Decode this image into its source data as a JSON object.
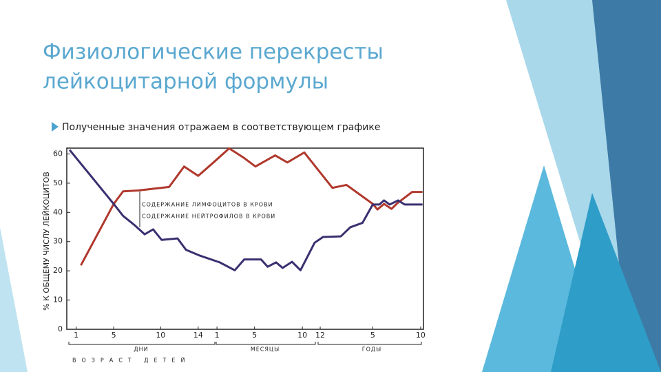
{
  "slide": {
    "title_lines": [
      "Физиологические перекресты",
      "лейкоцитарной формулы"
    ],
    "bullet": "Полученные значения отражаем в соответствующем графике"
  },
  "chart_data": {
    "type": "line",
    "y_label": "% К ОБЩЕМУ ЧИСЛУ ЛЕЙКОЦИТОВ",
    "x_group_labels": [
      "ДНИ",
      "МЕСЯЦЫ",
      "ГОДЫ"
    ],
    "x_label": "ВОЗРАСТ ДЕТЕЙ",
    "xlim": [
      0,
      38
    ],
    "ylim": [
      0,
      62
    ],
    "xticks": [
      {
        "value": 1,
        "label": "1"
      },
      {
        "value": 5,
        "label": "5"
      },
      {
        "value": 10,
        "label": "10"
      },
      {
        "value": 14,
        "label": "14"
      },
      {
        "value": 16,
        "label": "1"
      },
      {
        "value": 20,
        "label": "5"
      },
      {
        "value": 25.1,
        "label": "10"
      },
      {
        "value": 27,
        "label": "12"
      },
      {
        "value": 32.6,
        "label": "5"
      },
      {
        "value": 37.7,
        "label": "10"
      }
    ],
    "yticks": [
      0,
      10,
      20,
      30,
      40,
      50,
      60
    ],
    "series": [
      {
        "name": "СОДЕРЖАНИЕ ЛИМФОЦИТОВ В КРОВИ",
        "color": "#b0382c",
        "x": [
          1.5,
          5,
          6,
          7.6,
          10.9,
          12.5,
          14,
          15.7,
          17.3,
          18.9,
          20.1,
          22.2,
          23.5,
          25.3,
          28.3,
          29.8,
          32.6,
          33.1,
          33.8,
          34.6,
          35.2,
          36.8,
          37.9
        ],
        "values": [
          21.9,
          42.9,
          47.2,
          47.5,
          48.7,
          55.7,
          52.5,
          57.3,
          61.9,
          58.6,
          55.7,
          59.5,
          57.1,
          60.5,
          48.4,
          49.4,
          42.9,
          41,
          42.9,
          41.2,
          43.1,
          47,
          47
        ]
      },
      {
        "name": "СОДЕРЖАНИЕ НЕЙТРОФИЛОВ В КРОВИ",
        "color": "#3a3070",
        "x": [
          0.3,
          5,
          6,
          7.2,
          8.3,
          9.2,
          10.1,
          11.8,
          12.7,
          14.1,
          16.3,
          17.9,
          18.9,
          20.7,
          21.4,
          22.3,
          23,
          24,
          24.9,
          26.4,
          27.3,
          29.2,
          30.2,
          31.5,
          32.6,
          33.3,
          33.8,
          34.4,
          35.3,
          36,
          37.9
        ],
        "values": [
          61.4,
          42.9,
          38.8,
          35.7,
          32.5,
          34.2,
          30.6,
          31.1,
          27.2,
          25.3,
          22.9,
          20.2,
          23.9,
          23.9,
          21.4,
          22.9,
          21,
          23.1,
          20.2,
          29.6,
          31.6,
          31.8,
          34.9,
          36.4,
          42.7,
          42.7,
          44.1,
          42.7,
          44.1,
          42.7,
          42.7
        ]
      }
    ]
  }
}
